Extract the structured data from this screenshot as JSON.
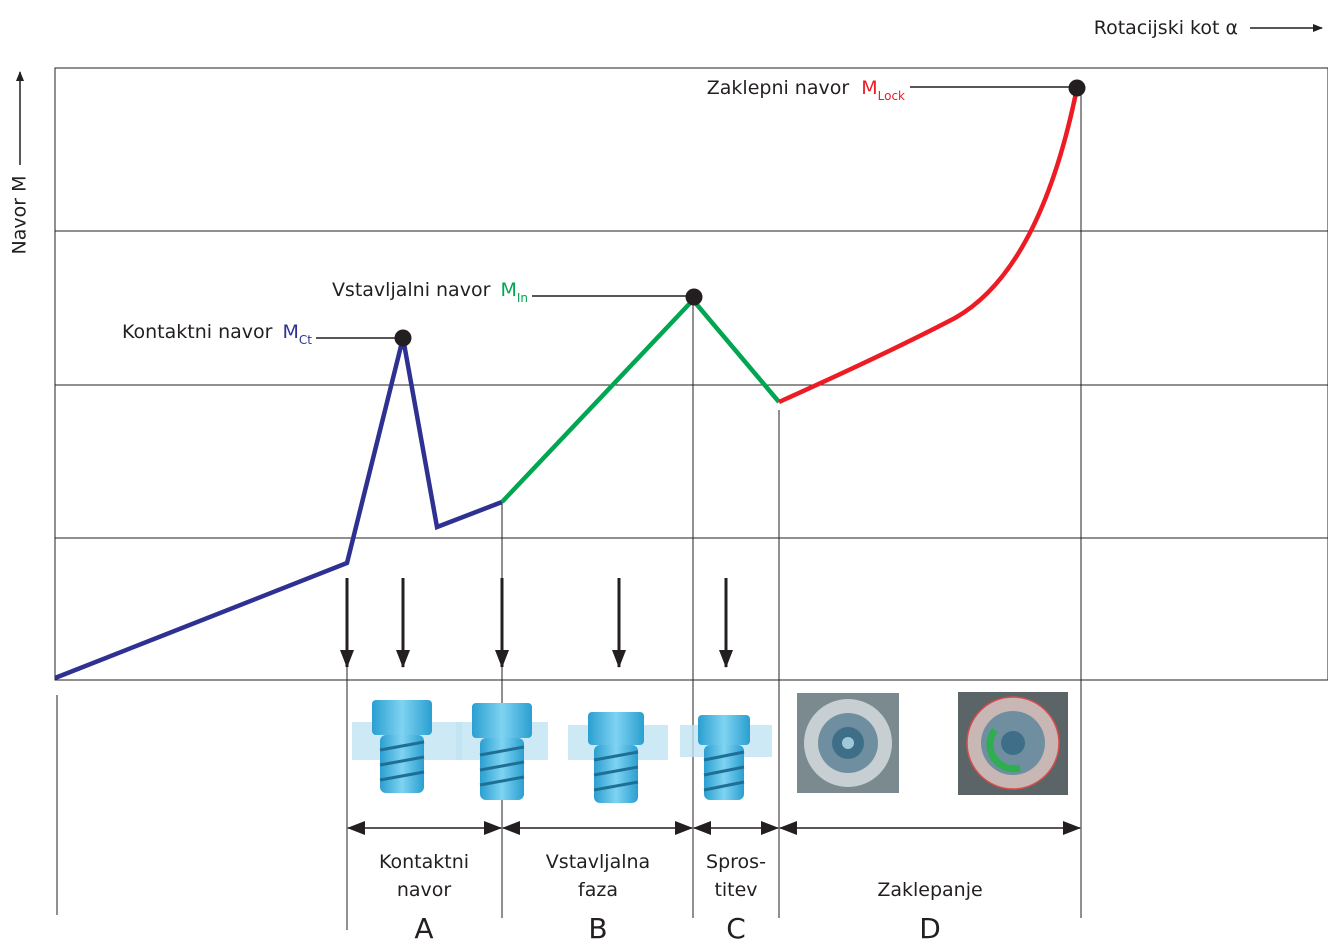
{
  "axes": {
    "x_label": "Rotacijski kot α",
    "y_label": "Navor M"
  },
  "annotations": [
    {
      "label": "Zaklepni navor",
      "symbol": "M",
      "subscript": "Lock"
    },
    {
      "label": "Vstavljalni navor",
      "symbol": "M",
      "subscript": "In"
    },
    {
      "label": "Kontaktni navor",
      "symbol": "M",
      "subscript": "Ct"
    }
  ],
  "phases": [
    {
      "lines": [
        "Kontaktni",
        "navor"
      ],
      "letter": "A"
    },
    {
      "lines": [
        "Vstavljalna",
        "faza"
      ],
      "letter": "B"
    },
    {
      "lines": [
        "Spros-",
        "titev"
      ],
      "letter": "C"
    },
    {
      "lines": [
        "Zaklepanje"
      ],
      "letter": "D"
    }
  ]
}
